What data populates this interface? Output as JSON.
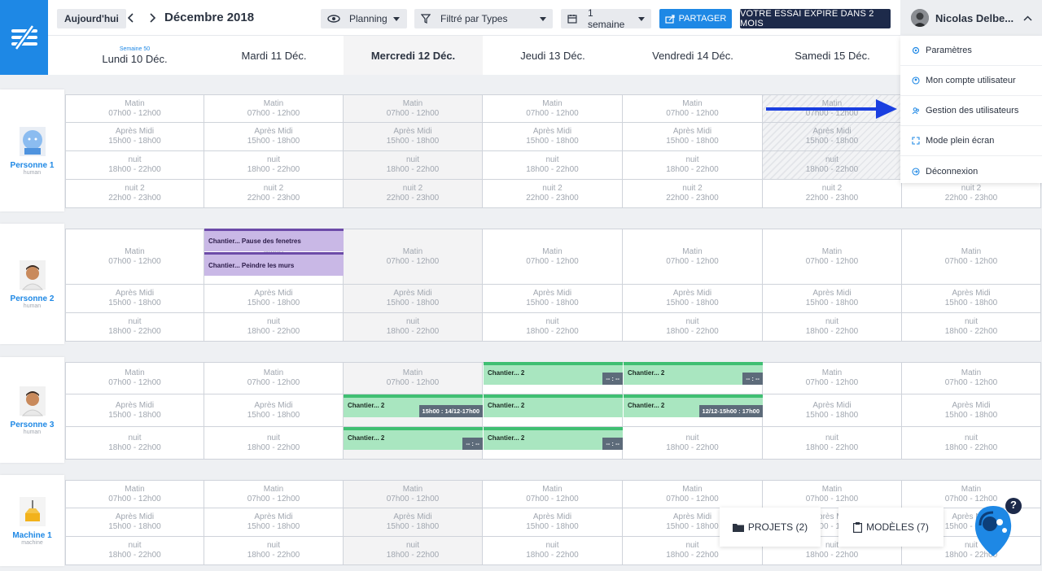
{
  "toolbar": {
    "today_label": "Aujourd'hui",
    "month_title": "Décembre 2018",
    "view_label": "Planning",
    "filter_label": "Filtré par Types",
    "range_label": "1 semaine",
    "share_label": "PARTAGER",
    "trial_label": "VOTRE ESSAI EXPIRE DANS 2 MOIS",
    "user_name": "Nicolas Delbe..."
  },
  "week_label": "Semaine 50",
  "days": [
    "Lundi 10 Déc.",
    "Mardi 11 Déc.",
    "Mercredi 12 Déc.",
    "Jeudi 13 Déc.",
    "Vendredi 14 Déc.",
    "Samedi 15 Déc."
  ],
  "slots": {
    "matin": {
      "name": "Matin",
      "time": "07h00 - 12h00"
    },
    "apres_midi": {
      "name": "Après Midi",
      "time": "15h00 - 18h00"
    },
    "nuit": {
      "name": "nuit",
      "time": "18h00 - 22h00"
    },
    "nuit2": {
      "name": "nuit 2",
      "time": "22h00 - 23h00"
    }
  },
  "resources": [
    {
      "name": "Personne 1",
      "type": "human"
    },
    {
      "name": "Personne 2",
      "type": "human"
    },
    {
      "name": "Personne 3",
      "type": "human"
    },
    {
      "name": "Machine 1",
      "type": "machine"
    }
  ],
  "events": {
    "p2_mardi_1": "Chantier... Pause des fenetres",
    "p2_mardi_2": "Chantier... Peindre les murs",
    "chantier2": "Chantier... 2",
    "badge_dash": "-- : --",
    "badge_mer": "15h00 : 14/12-17h00",
    "badge_ven": "12/12-15h00 : 17h00"
  },
  "user_menu": {
    "items": [
      "Paramètres",
      "Mon compte utilisateur",
      "Gestion des utilisateurs",
      "Mode plein écran",
      "Déconnexion"
    ]
  },
  "bottom": {
    "projects_label": "PROJETS (2)",
    "models_label": "MODÈLES (7)",
    "help_label": "?"
  },
  "colors": {
    "accent": "#1e88e5",
    "dark": "#1d2a4a",
    "event_purple": "#c9b8e6",
    "event_green": "#a9e6c0"
  }
}
